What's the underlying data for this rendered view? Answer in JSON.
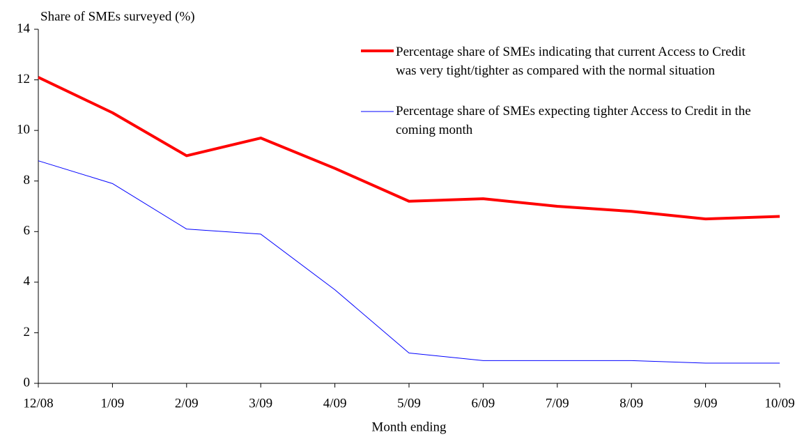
{
  "chart_data": {
    "type": "line",
    "ylabel": "Share of SMEs surveyed (%)",
    "xlabel": "Month ending",
    "categories": [
      "12/08",
      "1/09",
      "2/09",
      "3/09",
      "4/09",
      "5/09",
      "6/09",
      "7/09",
      "8/09",
      "9/09",
      "10/09"
    ],
    "series": [
      {
        "name": "Percentage share of SMEs indicating that current Access to Credit was very tight/tighter as compared with the normal situation",
        "color": "#ff0000",
        "width": 4,
        "values": [
          12.1,
          10.7,
          9.0,
          9.7,
          8.5,
          7.2,
          7.3,
          7.0,
          6.8,
          6.5,
          6.6
        ]
      },
      {
        "name": "Percentage share of SMEs expecting tighter Access to Credit in the coming month",
        "color": "#0000ff",
        "width": 1,
        "values": [
          8.8,
          7.9,
          6.1,
          5.9,
          3.7,
          1.2,
          0.9,
          0.9,
          0.9,
          0.8,
          0.8
        ]
      }
    ],
    "ylim": [
      0,
      14
    ],
    "yticks": [
      0,
      2,
      4,
      6,
      8,
      10,
      12,
      14
    ],
    "grid": false
  }
}
